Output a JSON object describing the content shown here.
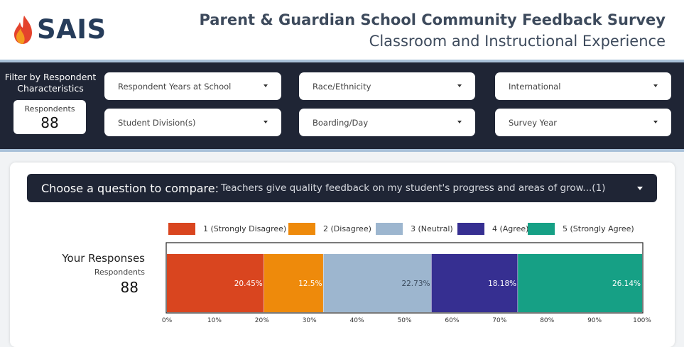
{
  "header": {
    "logo_text": "SAIS",
    "title": "Parent & Guardian School Community Feedback Survey",
    "subtitle": "Classroom and Instructional Experience"
  },
  "filters": {
    "label": "Filter by Respondent Characteristics",
    "respondents_label": "Respondents",
    "respondents_value": "88",
    "dropdowns": [
      "Respondent Years at School",
      "Race/Ethnicity",
      "International",
      "Student Division(s)",
      "Boarding/Day",
      "Survey Year"
    ]
  },
  "question": {
    "label": "Choose a question to compare:",
    "value": "Teachers give quality feedback on my student's progress and areas of grow...(1)"
  },
  "responses": {
    "label": "Your Responses",
    "respondents_label": "Respondents",
    "respondents_value": "88"
  },
  "colors": {
    "strongly_disagree": "#d9451f",
    "disagree": "#ee8a0b",
    "neutral": "#9db6cf",
    "agree": "#362f91",
    "strongly_agree": "#16a085"
  },
  "chart_data": {
    "type": "bar",
    "orientation": "horizontal-stacked-100",
    "categories": [
      "Your Responses"
    ],
    "series": [
      {
        "name": "1 (Strongly Disagree)",
        "values": [
          20.45
        ],
        "label": "20.45%",
        "color": "#d9451f"
      },
      {
        "name": "2 (Disagree)",
        "values": [
          12.5
        ],
        "label": "12.5%",
        "color": "#ee8a0b"
      },
      {
        "name": "3 (Neutral)",
        "values": [
          22.73
        ],
        "label": "22.73%",
        "color": "#9db6cf"
      },
      {
        "name": "4 (Agree)",
        "values": [
          18.18
        ],
        "label": "18.18%",
        "color": "#362f91"
      },
      {
        "name": "5 (Strongly Agree)",
        "values": [
          26.14
        ],
        "label": "26.14%",
        "color": "#16a085"
      }
    ],
    "xlim": [
      0,
      100
    ],
    "xticks": [
      "0%",
      "10%",
      "20%",
      "30%",
      "40%",
      "50%",
      "60%",
      "70%",
      "80%",
      "90%",
      "100%"
    ],
    "legend": "top",
    "grid": false
  }
}
